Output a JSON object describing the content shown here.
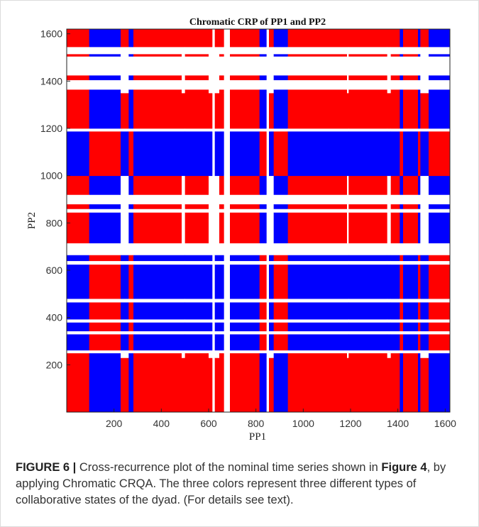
{
  "chart_data": {
    "type": "heatmap",
    "title": "Chromatic CRP of PP1 and PP2",
    "xlabel": "PP1",
    "ylabel": "PP2",
    "xlim": [
      0,
      1620
    ],
    "ylim": [
      0,
      1620
    ],
    "xticks": [
      200,
      400,
      600,
      800,
      1000,
      1200,
      1400,
      1600
    ],
    "yticks": [
      200,
      400,
      600,
      800,
      1000,
      1200,
      1400,
      1600
    ],
    "grid": false,
    "legend": "none",
    "colors": {
      "red": "#ff0000",
      "blue": "#0000ff",
      "white": "#ffffff"
    },
    "x_boundaries": [
      0,
      95,
      228,
      262,
      282,
      486,
      500,
      600,
      616,
      626,
      645,
      665,
      690,
      815,
      845,
      855,
      875,
      935,
      1185,
      1192,
      1355,
      1370,
      1408,
      1422,
      1485,
      1495,
      1530,
      1620
    ],
    "x_types": [
      "A",
      "B",
      "C",
      "B",
      "A",
      "C",
      "A",
      "C",
      "D",
      "C",
      "A",
      "D",
      "A",
      "B",
      "D",
      "C",
      "B",
      "A",
      "C",
      "A",
      "C",
      "A",
      "B",
      "A",
      "B",
      "C",
      "B"
    ],
    "y_boundaries": [
      0,
      230,
      250,
      262,
      330,
      343,
      380,
      393,
      465,
      480,
      625,
      640,
      665,
      715,
      845,
      860,
      880,
      920,
      1000,
      1188,
      1200,
      1350,
      1365,
      1405,
      1425,
      1505,
      1515,
      1545,
      1620
    ],
    "y_types": [
      "A",
      "C",
      "D",
      "B",
      "D",
      "B",
      "D",
      "B",
      "D",
      "B",
      "D",
      "B",
      "D",
      "C",
      "D",
      "C",
      "D",
      "C",
      "B",
      "D",
      "A",
      "C",
      "D",
      "C",
      "D",
      "C",
      "D",
      "A"
    ]
  },
  "caption": {
    "figure_label": "FIGURE 6 |",
    "text1": " Cross-recurrence plot of the nominal time series shown in ",
    "figure_ref": "Figure 4",
    "text2": ", by applying Chromatic CRQA. The three colors represent three different types of collaborative states of the dyad. (For details see text)."
  }
}
